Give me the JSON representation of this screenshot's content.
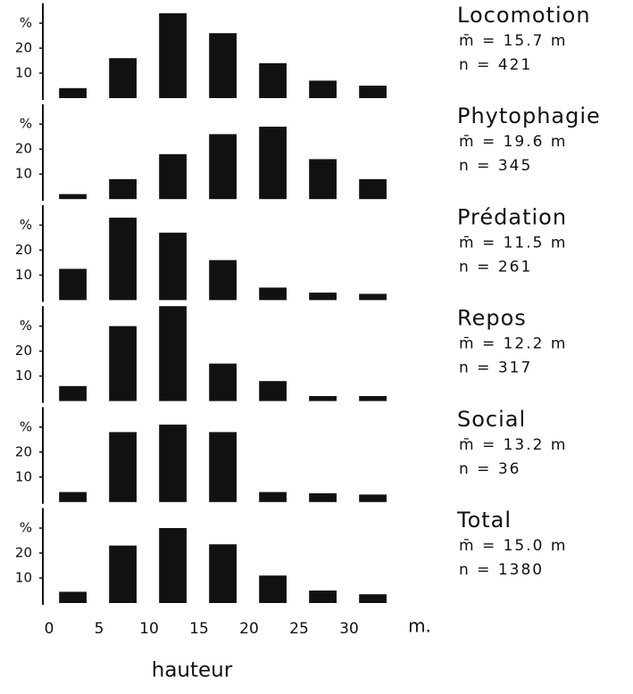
{
  "chart_data": [
    {
      "type": "histogram",
      "title": "Locomotion",
      "stats": [
        "m̄ = 15.7 m",
        "n = 421"
      ],
      "bins": [
        0,
        5,
        10,
        15,
        20,
        25,
        30,
        35
      ],
      "values": [
        4,
        16,
        34,
        26,
        14,
        7,
        5
      ],
      "color": "#111111",
      "xlim": [
        0,
        35
      ],
      "ylim": [
        0,
        38
      ],
      "yticks": [
        10,
        20,
        {
          "value": 30,
          "label": "%"
        }
      ]
    },
    {
      "type": "histogram",
      "title": "Phytophagie",
      "stats": [
        "m̄ = 19.6 m",
        "n = 345"
      ],
      "bins": [
        0,
        5,
        10,
        15,
        20,
        25,
        30,
        35
      ],
      "values": [
        2,
        8,
        18,
        26,
        29,
        16,
        8
      ],
      "color": "#111111",
      "xlim": [
        0,
        35
      ],
      "ylim": [
        0,
        38
      ],
      "yticks": [
        10,
        20,
        {
          "value": 30,
          "label": "%"
        }
      ]
    },
    {
      "type": "histogram",
      "title": "Prédation",
      "stats": [
        "m̄ = 11.5 m",
        "n = 261"
      ],
      "bins": [
        0,
        5,
        10,
        15,
        20,
        25,
        30,
        35
      ],
      "values": [
        12.5,
        33,
        27,
        16,
        5,
        3,
        2.5
      ],
      "color": "#111111",
      "xlim": [
        0,
        35
      ],
      "ylim": [
        0,
        38
      ],
      "yticks": [
        10,
        20,
        {
          "value": 30,
          "label": "%"
        }
      ]
    },
    {
      "type": "histogram",
      "title": "Repos",
      "stats": [
        "m̄ = 12.2 m",
        "n = 317"
      ],
      "bins": [
        0,
        5,
        10,
        15,
        20,
        25,
        30,
        35
      ],
      "values": [
        6,
        30,
        38,
        15,
        8,
        2,
        2
      ],
      "color": "#111111",
      "xlim": [
        0,
        35
      ],
      "ylim": [
        0,
        38
      ],
      "yticks": [
        10,
        20,
        {
          "value": 30,
          "label": "%"
        }
      ]
    },
    {
      "type": "histogram",
      "title": "Social",
      "stats": [
        "m̄ = 13.2 m",
        "n = 36"
      ],
      "bins": [
        0,
        5,
        10,
        15,
        20,
        25,
        30,
        35
      ],
      "values": [
        4,
        28,
        31,
        28,
        4,
        3.5,
        3
      ],
      "color": "#111111",
      "xlim": [
        0,
        35
      ],
      "ylim": [
        0,
        38
      ],
      "yticks": [
        10,
        20,
        {
          "value": 30,
          "label": "%"
        }
      ]
    },
    {
      "type": "histogram",
      "title": "Total",
      "stats": [
        "m̄ = 15.0 m",
        "n = 1380"
      ],
      "bins": [
        0,
        5,
        10,
        15,
        20,
        25,
        30,
        35
      ],
      "values": [
        4.5,
        23,
        30,
        23.5,
        11,
        5,
        3.5
      ],
      "color": "#111111",
      "xlim": [
        0,
        35
      ],
      "ylim": [
        0,
        38
      ],
      "yticks": [
        10,
        20,
        {
          "value": 30,
          "label": "%"
        }
      ],
      "xticks": [
        0,
        5,
        10,
        15,
        20,
        25,
        30
      ],
      "x_unit": "m.",
      "xlabel": "hauteur"
    }
  ]
}
